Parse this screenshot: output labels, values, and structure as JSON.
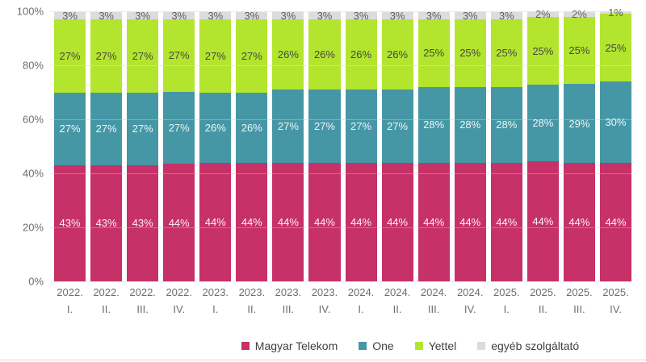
{
  "chart_data": {
    "type": "bar",
    "stacked": true,
    "percent_stacked": true,
    "title": "",
    "xlabel": "",
    "ylabel": "",
    "ylim": [
      0,
      100
    ],
    "grid": true,
    "legend_position": "bottom",
    "y_ticks": [
      "100%",
      "80%",
      "60%",
      "40%",
      "20%",
      "0%"
    ],
    "categories": [
      "2022. I.",
      "2022. II.",
      "2022. III.",
      "2022. IV.",
      "2023. I.",
      "2023. II.",
      "2023. III.",
      "2023. IV.",
      "2024. I.",
      "2024. II.",
      "2024. III.",
      "2024. IV.",
      "2025. I.",
      "2025. II.",
      "2025. III.",
      "2025. IV."
    ],
    "series": [
      {
        "name": "Magyar Telekom",
        "color": "#C63167",
        "label_color": "#FDF2F6",
        "values": [
          43,
          43,
          43,
          44,
          44,
          44,
          44,
          44,
          44,
          44,
          44,
          44,
          44,
          44,
          44,
          44
        ]
      },
      {
        "name": "One",
        "color": "#4697A6",
        "label_color": "#EDF6F7",
        "values": [
          27,
          27,
          27,
          27,
          26,
          26,
          27,
          27,
          27,
          27,
          28,
          28,
          28,
          28,
          29,
          30
        ]
      },
      {
        "name": "Yettel",
        "color": "#B3E52E",
        "label_color": "#474747",
        "values": [
          27,
          27,
          27,
          27,
          27,
          27,
          26,
          26,
          26,
          26,
          25,
          25,
          25,
          25,
          25,
          25
        ]
      },
      {
        "name": "egyéb szolgáltató",
        "color": "#DCDCDC",
        "label_color": "#5E5E5E",
        "values": [
          3,
          3,
          3,
          3,
          3,
          3,
          3,
          3,
          3,
          3,
          3,
          3,
          3,
          2,
          2,
          1
        ]
      }
    ]
  }
}
